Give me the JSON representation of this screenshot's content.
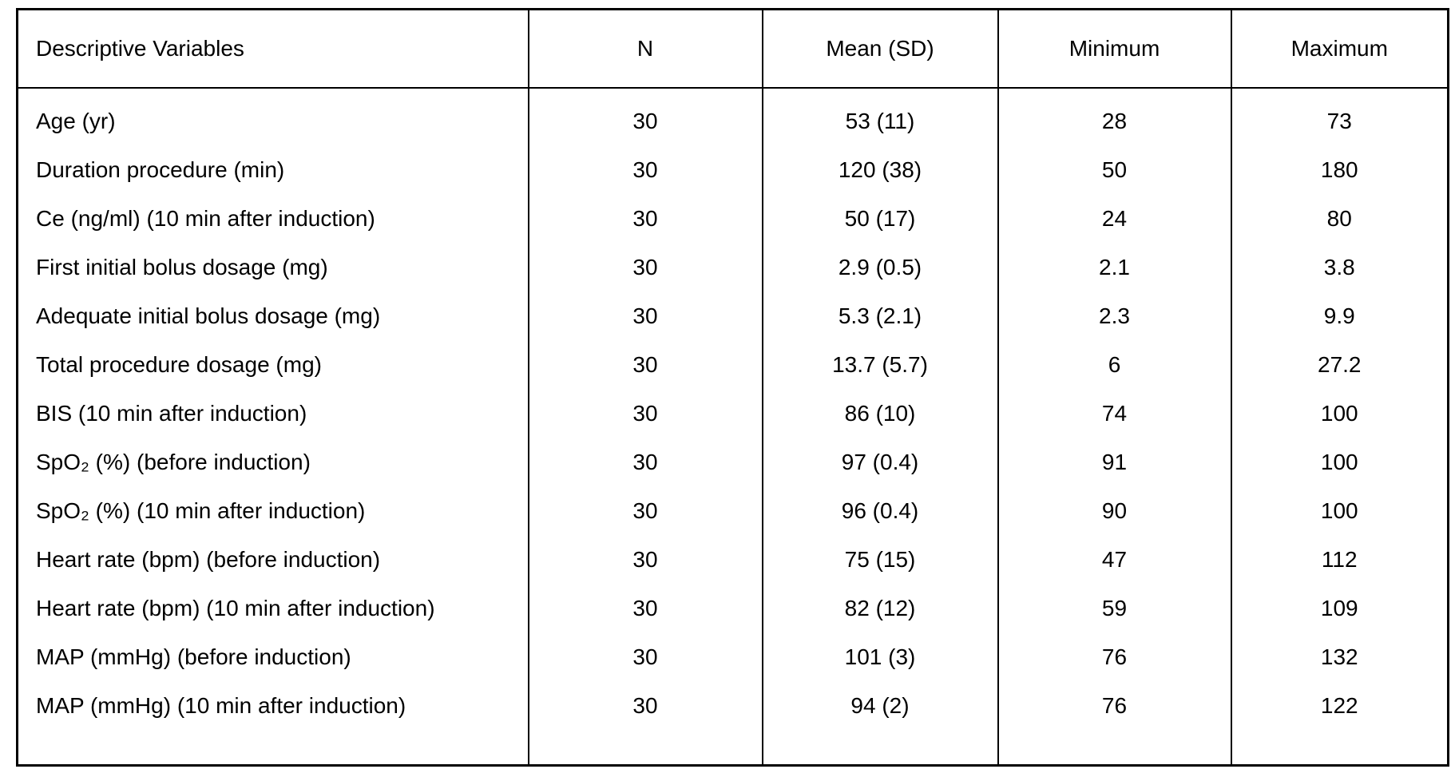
{
  "page": {
    "background_color": "#ffffff",
    "text_color": "#000000",
    "border_color": "#000000"
  },
  "table": {
    "columns": [
      "Descriptive Variables",
      "N",
      "Mean (SD)",
      "Minimum",
      "Maximum"
    ],
    "rows": [
      [
        "Age (yr)",
        "30",
        "53 (11)",
        "28",
        "73"
      ],
      [
        "Duration procedure (min)",
        "30",
        "120 (38)",
        "50",
        "180"
      ],
      [
        "Ce (ng/ml) (10 min after induction)",
        "30",
        "50 (17)",
        "24",
        "80"
      ],
      [
        "First initial bolus dosage (mg)",
        "30",
        "2.9 (0.5)",
        "2.1",
        "3.8"
      ],
      [
        "Adequate initial bolus dosage (mg)",
        "30",
        "5.3 (2.1)",
        "2.3",
        "9.9"
      ],
      [
        "Total procedure dosage (mg)",
        "30",
        "13.7 (5.7)",
        "6",
        "27.2"
      ],
      [
        "BIS (10 min after induction)",
        "30",
        "86 (10)",
        "74",
        "100"
      ],
      [
        "SpO₂ (%) (before induction)",
        "30",
        "97 (0.4)",
        "91",
        "100"
      ],
      [
        "SpO₂ (%) (10 min after induction)",
        "30",
        "96 (0.4)",
        "90",
        "100"
      ],
      [
        "Heart rate (bpm) (before induction)",
        "30",
        "75 (15)",
        "47",
        "112"
      ],
      [
        "Heart rate (bpm) (10 min after induction)",
        "30",
        "82 (12)",
        "59",
        "109"
      ],
      [
        "MAP (mmHg) (before induction)",
        "30",
        "101 (3)",
        "76",
        "132"
      ],
      [
        "MAP (mmHg) (10 min after induction)",
        "30",
        "94 (2)",
        "76",
        "122"
      ]
    ]
  }
}
